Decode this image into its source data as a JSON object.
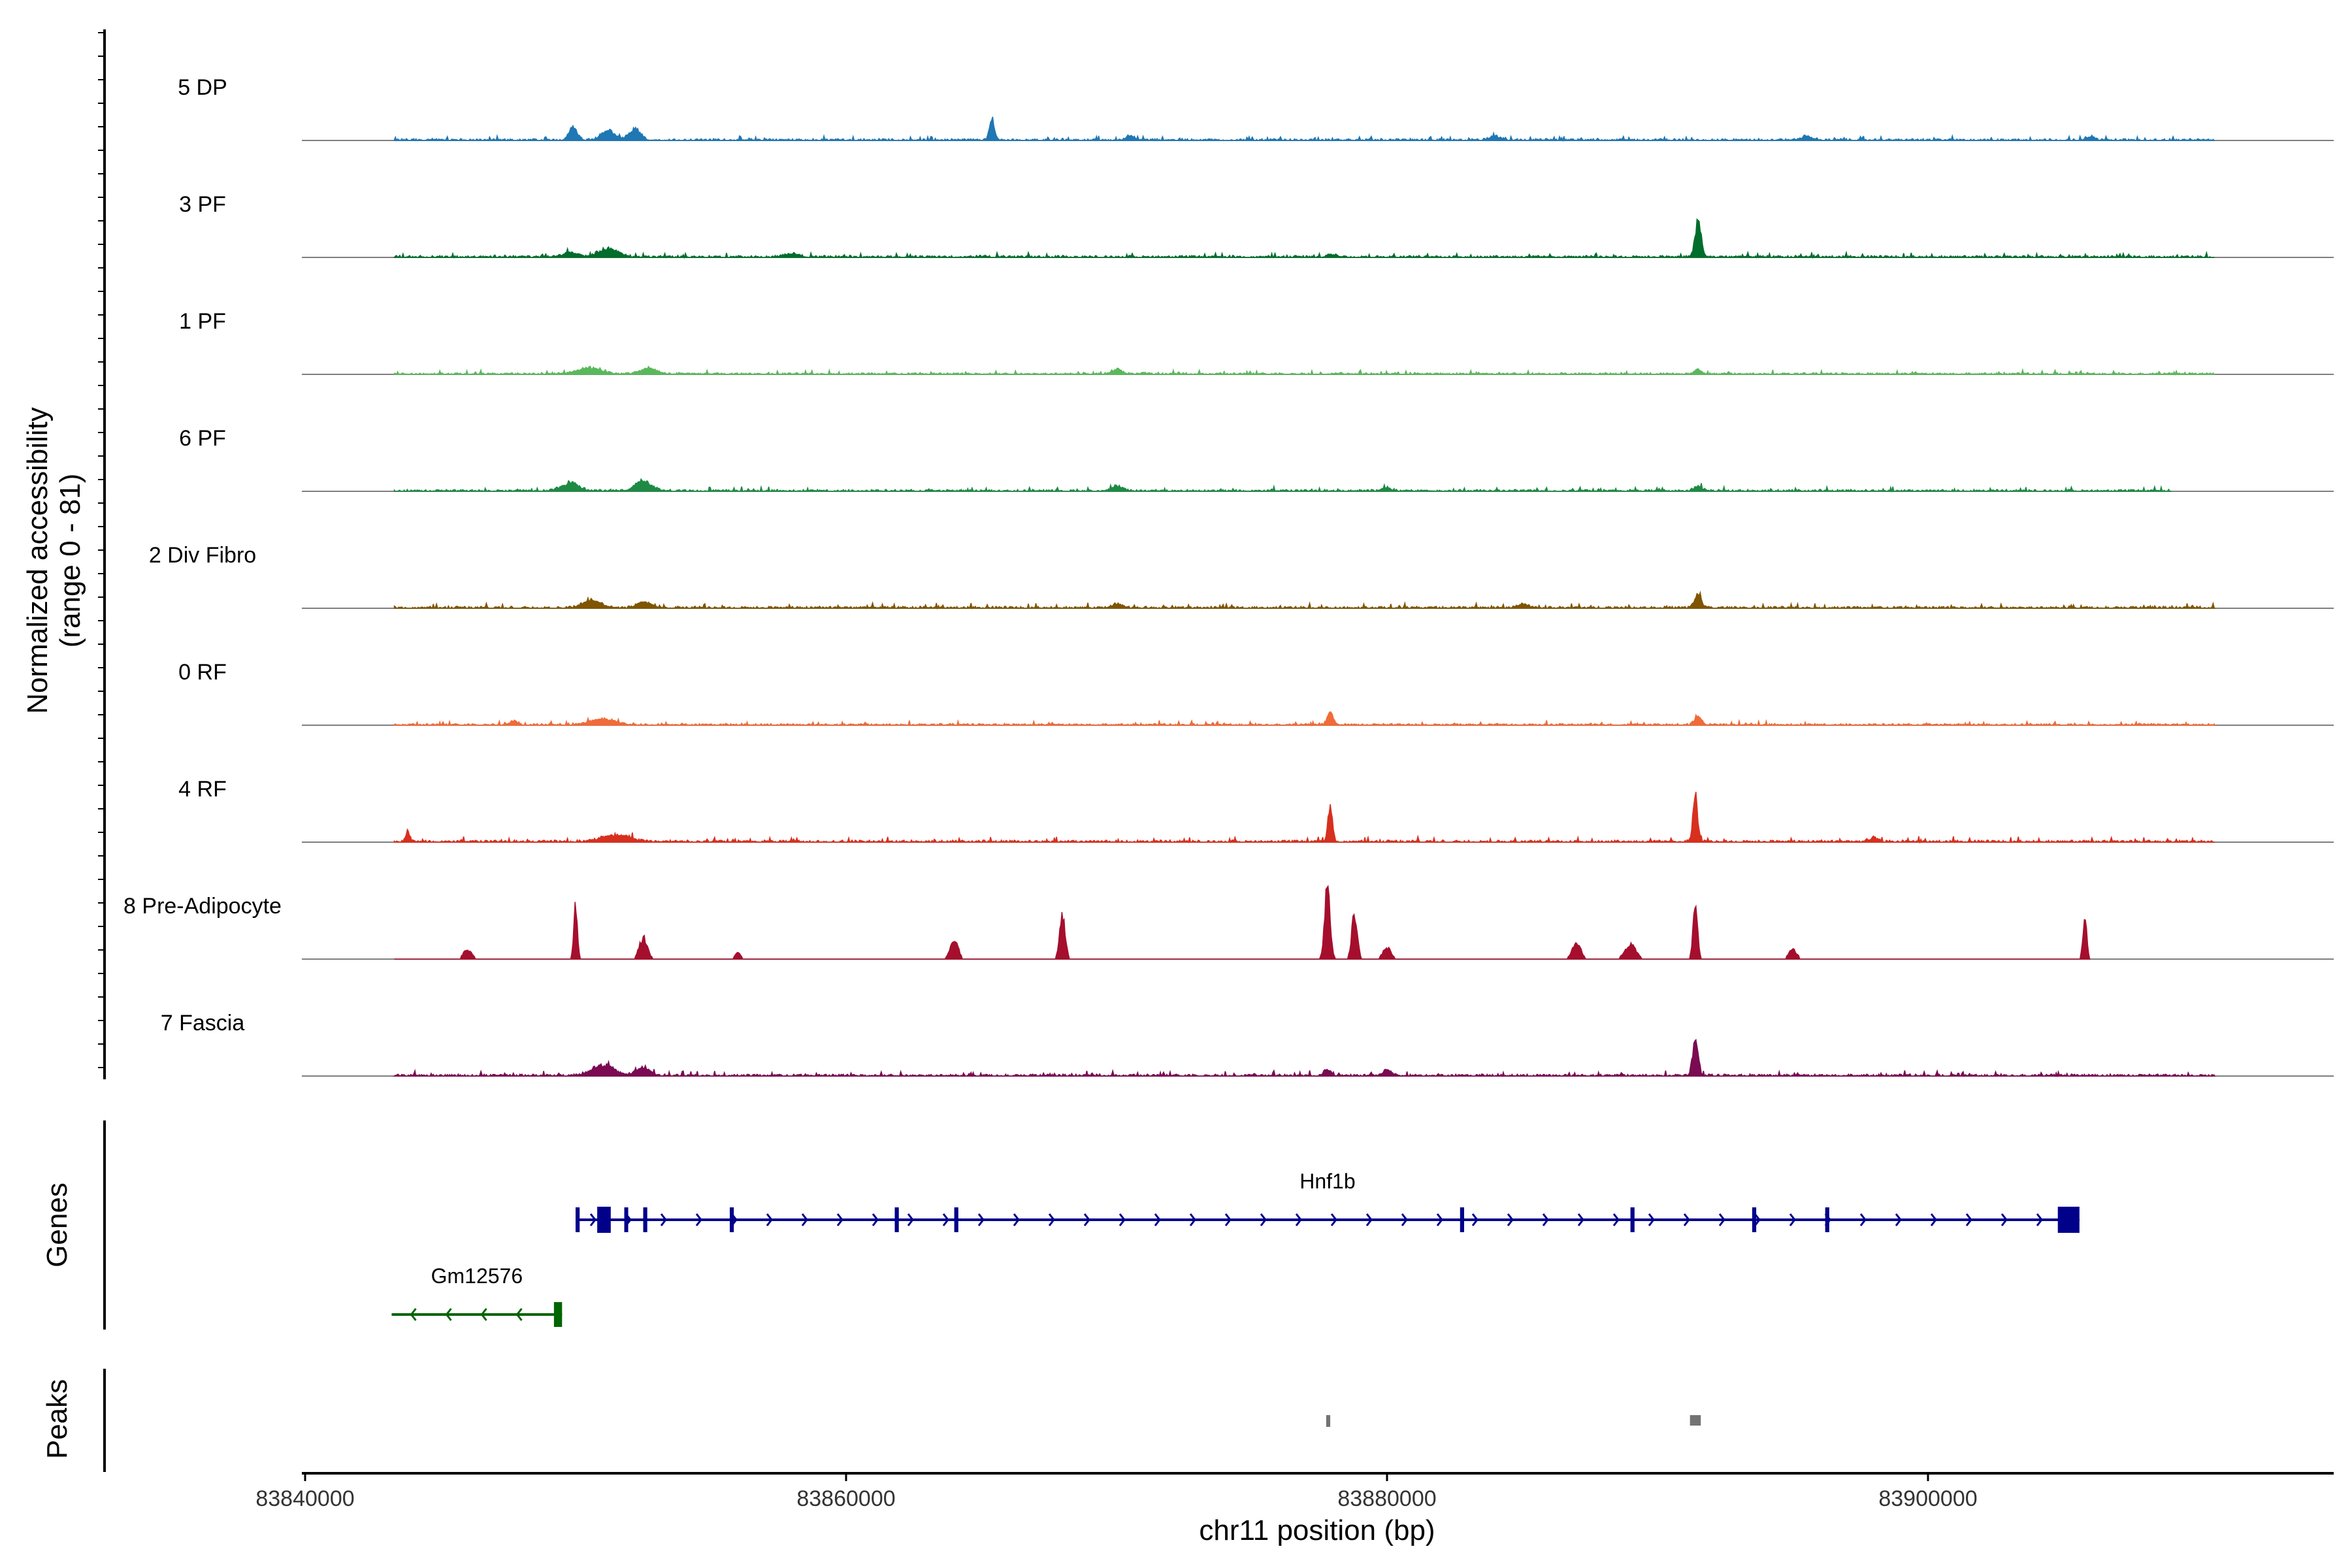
{
  "chart_data": {
    "type": "area",
    "title": "",
    "ylabel_line1": "Normalized accessibility",
    "ylabel_line2": "(range 0 - 81)",
    "xlabel": "chr11 position (bp)",
    "xlim": [
      83840000,
      83915000
    ],
    "ylim": [
      0,
      81
    ],
    "x_ticks": [
      83840000,
      83860000,
      83880000,
      83900000
    ],
    "x_tick_labels": [
      "83840000",
      "83860000",
      "83880000",
      "83900000"
    ],
    "series": [
      {
        "name": "5 DP",
        "color": "#1f77b4",
        "start": 83843300,
        "end": 83910600,
        "baseline": 1.0,
        "noise": 1.2,
        "peaks": [
          [
            83849900,
            11,
            300
          ],
          [
            83851200,
            8,
            500
          ],
          [
            83852200,
            9,
            400
          ],
          [
            83865400,
            18,
            180
          ],
          [
            83870500,
            4,
            300
          ],
          [
            83884000,
            3,
            400
          ],
          [
            83895500,
            3,
            400
          ],
          [
            83906000,
            3,
            300
          ]
        ]
      },
      {
        "name": "3 PF",
        "color": "#006d2c",
        "start": 83843300,
        "end": 83910600,
        "baseline": 1.0,
        "noise": 1.3,
        "peaks": [
          [
            83891500,
            30,
            220
          ],
          [
            83851200,
            7,
            700
          ],
          [
            83849800,
            4,
            500
          ],
          [
            83858000,
            3,
            500
          ],
          [
            83878000,
            2,
            400
          ]
        ]
      },
      {
        "name": "1 PF",
        "color": "#5ab85c",
        "start": 83843300,
        "end": 83910600,
        "baseline": 0.8,
        "noise": 1.2,
        "peaks": [
          [
            83850500,
            5,
            900
          ],
          [
            83852700,
            5,
            600
          ],
          [
            83870000,
            4,
            400
          ],
          [
            83891500,
            4,
            250
          ]
        ]
      },
      {
        "name": "6 PF",
        "color": "#1e8a44",
        "start": 83843300,
        "end": 83909000,
        "baseline": 0.9,
        "noise": 1.4,
        "peaks": [
          [
            83849800,
            7,
            600
          ],
          [
            83852500,
            8,
            600
          ],
          [
            83880000,
            3,
            300
          ],
          [
            83891500,
            4,
            300
          ],
          [
            83870000,
            4,
            400
          ]
        ]
      },
      {
        "name": "2 Div Fibro",
        "color": "#7f5500",
        "start": 83843300,
        "end": 83910600,
        "baseline": 1.0,
        "noise": 1.4,
        "peaks": [
          [
            83850600,
            6,
            700
          ],
          [
            83852500,
            5,
            500
          ],
          [
            83891500,
            11,
            250
          ],
          [
            83870000,
            3,
            400
          ],
          [
            83885000,
            3,
            400
          ]
        ]
      },
      {
        "name": "0 RF",
        "color": "#f06b38",
        "start": 83843300,
        "end": 83910600,
        "baseline": 0.8,
        "noise": 1.3,
        "peaks": [
          [
            83877900,
            12,
            200
          ],
          [
            83891500,
            8,
            250
          ],
          [
            83851000,
            5,
            900
          ],
          [
            83847700,
            3,
            300
          ]
        ]
      },
      {
        "name": "4 RF",
        "color": "#d7301f",
        "start": 83843300,
        "end": 83910600,
        "baseline": 1.0,
        "noise": 1.6,
        "peaks": [
          [
            83877900,
            32,
            160
          ],
          [
            83891400,
            40,
            170
          ],
          [
            83843800,
            9,
            150
          ],
          [
            83851500,
            6,
            1000
          ],
          [
            83898000,
            3,
            300
          ]
        ]
      },
      {
        "name": "8 Pre-Adipocyte",
        "color": "#a50f2d",
        "start": 83843300,
        "end": 83906000,
        "baseline": 0.0,
        "noise": 0.0,
        "peaks": [
          [
            83877800,
            62,
            200
          ],
          [
            83878800,
            40,
            200
          ],
          [
            83850000,
            45,
            130
          ],
          [
            83868000,
            40,
            200
          ],
          [
            83891400,
            52,
            160
          ],
          [
            83905800,
            36,
            140
          ],
          [
            83852500,
            18,
            300
          ],
          [
            83864000,
            15,
            300
          ],
          [
            83887000,
            15,
            300
          ],
          [
            83889000,
            12,
            400
          ],
          [
            83880000,
            10,
            300
          ],
          [
            83846000,
            8,
            300
          ],
          [
            83856000,
            6,
            200
          ],
          [
            83895000,
            8,
            300
          ]
        ]
      },
      {
        "name": "7 Fascia",
        "color": "#7a0a52",
        "start": 83843300,
        "end": 83910600,
        "baseline": 1.0,
        "noise": 1.5,
        "peaks": [
          [
            83891400,
            30,
            200
          ],
          [
            83851000,
            9,
            800
          ],
          [
            83852500,
            7,
            500
          ],
          [
            83877800,
            5,
            250
          ],
          [
            83880000,
            5,
            300
          ]
        ]
      }
    ],
    "genes": [
      {
        "name": "Hnf1b",
        "strand": "+",
        "color": "#00008b",
        "start": 83850000,
        "end": 83905600,
        "exons": [
          [
            83850000,
            83850150
          ],
          [
            83850800,
            83851300
          ],
          [
            83851800,
            83851900
          ],
          [
            83852500,
            83852650
          ],
          [
            83855700,
            83855850
          ],
          [
            83861800,
            83861950
          ],
          [
            83864000,
            83864150
          ],
          [
            83882700,
            83882850
          ],
          [
            83889000,
            83889150
          ],
          [
            83893500,
            83893650
          ],
          [
            83896200,
            83896350
          ],
          [
            83904800,
            83905600
          ]
        ]
      },
      {
        "name": "Gm12576",
        "strand": "-",
        "color": "#006400",
        "start": 83843200,
        "end": 83849500,
        "exons": [
          [
            83849200,
            83849500
          ]
        ]
      }
    ],
    "peaks": [
      [
        83877750,
        83877900
      ],
      [
        83891200,
        83891600
      ]
    ],
    "panel_labels": [
      "Genes",
      "Peaks"
    ]
  }
}
